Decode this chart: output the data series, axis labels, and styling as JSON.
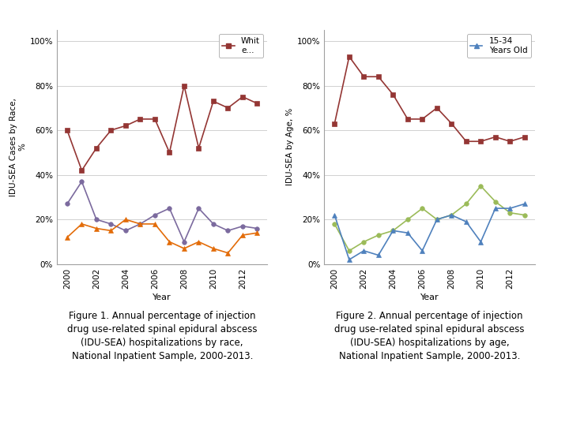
{
  "years": [
    2000,
    2001,
    2002,
    2003,
    2004,
    2005,
    2006,
    2007,
    2008,
    2009,
    2010,
    2011,
    2012,
    2013
  ],
  "chart1": {
    "ylabel": "IDU-SEA Cases by Race,\n%",
    "xlabel": "Year",
    "legend_label": "Whit\ne...",
    "legend_series_key": "white",
    "series": {
      "white": {
        "color": "#943634",
        "marker": "s",
        "values": [
          0.6,
          0.42,
          0.52,
          0.6,
          0.62,
          0.65,
          0.65,
          0.5,
          0.8,
          0.52,
          0.73,
          0.7,
          0.75,
          0.72
        ]
      },
      "black": {
        "color": "#7b6a9e",
        "marker": "o",
        "values": [
          0.27,
          0.37,
          0.2,
          0.18,
          0.15,
          0.18,
          0.22,
          0.25,
          0.1,
          0.25,
          0.18,
          0.15,
          0.17,
          0.16
        ]
      },
      "other": {
        "color": "#e36c09",
        "marker": "^",
        "values": [
          0.12,
          0.18,
          0.16,
          0.15,
          0.2,
          0.18,
          0.18,
          0.1,
          0.07,
          0.1,
          0.07,
          0.05,
          0.13,
          0.14
        ]
      }
    }
  },
  "chart2": {
    "ylabel": "IDU-SEA by Age, %",
    "xlabel": "Year",
    "legend_label": "15-34\nYears Old",
    "legend_series_key": "young_blue",
    "series": {
      "older": {
        "color": "#943634",
        "marker": "s",
        "values": [
          0.63,
          0.93,
          0.84,
          0.84,
          0.76,
          0.65,
          0.65,
          0.7,
          0.63,
          0.55,
          0.55,
          0.57,
          0.55,
          0.57
        ]
      },
      "young_green": {
        "color": "#9bbb59",
        "marker": "o",
        "values": [
          0.18,
          0.06,
          0.1,
          0.13,
          0.15,
          0.2,
          0.25,
          0.2,
          0.22,
          0.27,
          0.35,
          0.28,
          0.23,
          0.22
        ]
      },
      "young_blue": {
        "color": "#4f81bd",
        "marker": "^",
        "values": [
          0.22,
          0.02,
          0.06,
          0.04,
          0.15,
          0.14,
          0.06,
          0.2,
          0.22,
          0.19,
          0.1,
          0.25,
          0.25,
          0.27
        ]
      }
    }
  },
  "caption1": "Figure 1. Annual percentage of injection\ndrug use-related spinal epidural abscess\n(IDU-SEA) hospitalizations by race,\nNational Inpatient Sample, 2000-2013.",
  "caption2": "Figure 2. Annual percentage of injection\ndrug use-related spinal epidural abscess\n(IDU-SEA) hospitalizations by age,\nNational Inpatient Sample, 2000-2013.",
  "bg_color": "#ffffff",
  "grid_color": "#d0d0d0",
  "axis_color": "#a0a0a0",
  "caption_fontsize": 8.5,
  "ylabel_fontsize": 7.5,
  "xlabel_fontsize": 8,
  "tick_fontsize": 7.5,
  "legend_fontsize": 7.5,
  "line_width": 1.2,
  "marker_size": 4
}
